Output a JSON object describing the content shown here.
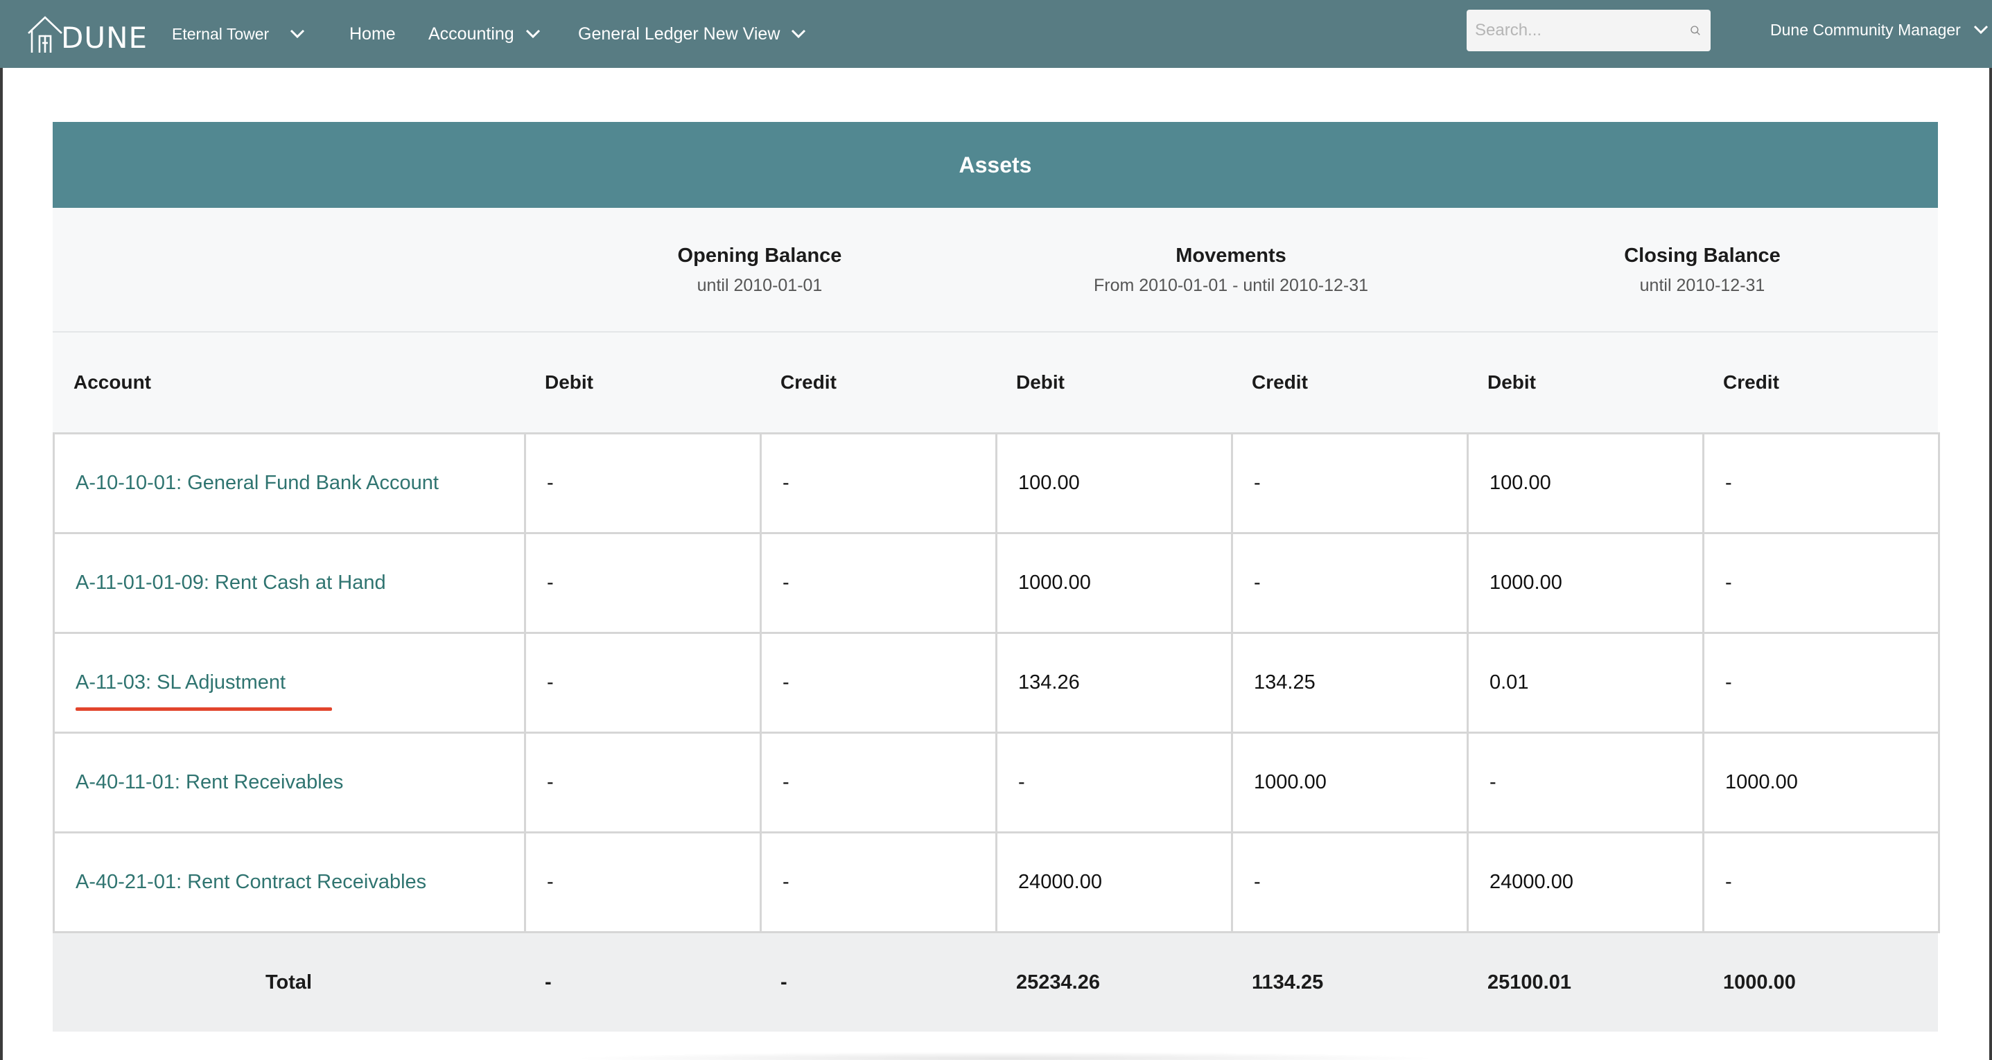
{
  "nav": {
    "logo_text": "DUNE",
    "property": "Eternal Tower",
    "home": "Home",
    "accounting": "Accounting",
    "ledger_view": "General Ledger New View",
    "search_placeholder": "Search...",
    "user": "Dune Community Manager"
  },
  "panel": {
    "title": "Assets",
    "periods": [
      {
        "title": "Opening Balance",
        "sub": "until 2010-01-01"
      },
      {
        "title": "Movements",
        "sub": "From 2010-01-01 - until 2010-12-31"
      },
      {
        "title": "Closing Balance",
        "sub": "until 2010-12-31"
      }
    ],
    "columns": [
      "Account",
      "Debit",
      "Credit",
      "Debit",
      "Credit",
      "Debit",
      "Credit"
    ],
    "rows": [
      {
        "account": "A-10-10-01: General Fund Bank Account",
        "cells": [
          "-",
          "-",
          "100.00",
          "-",
          "100.00",
          "-"
        ]
      },
      {
        "account": "A-11-01-01-09: Rent Cash at Hand",
        "cells": [
          "-",
          "-",
          "1000.00",
          "-",
          "1000.00",
          "-"
        ]
      },
      {
        "account": "A-11-03: SL Adjustment",
        "cells": [
          "-",
          "-",
          "134.26",
          "134.25",
          "0.01",
          "-"
        ]
      },
      {
        "account": "A-40-11-01: Rent Receivables",
        "cells": [
          "-",
          "-",
          "-",
          "1000.00",
          "-",
          "1000.00"
        ]
      },
      {
        "account": "A-40-21-01: Rent Contract Receivables",
        "cells": [
          "-",
          "-",
          "24000.00",
          "-",
          "24000.00",
          "-"
        ]
      }
    ],
    "total": {
      "label": "Total",
      "cells": [
        "-",
        "-",
        "25234.26",
        "1134.25",
        "25100.01",
        "1000.00"
      ]
    }
  },
  "colors": {
    "topbar": "#587c83",
    "panel_header": "#528891",
    "link": "#2f7470",
    "annotation": "#e2452c"
  }
}
